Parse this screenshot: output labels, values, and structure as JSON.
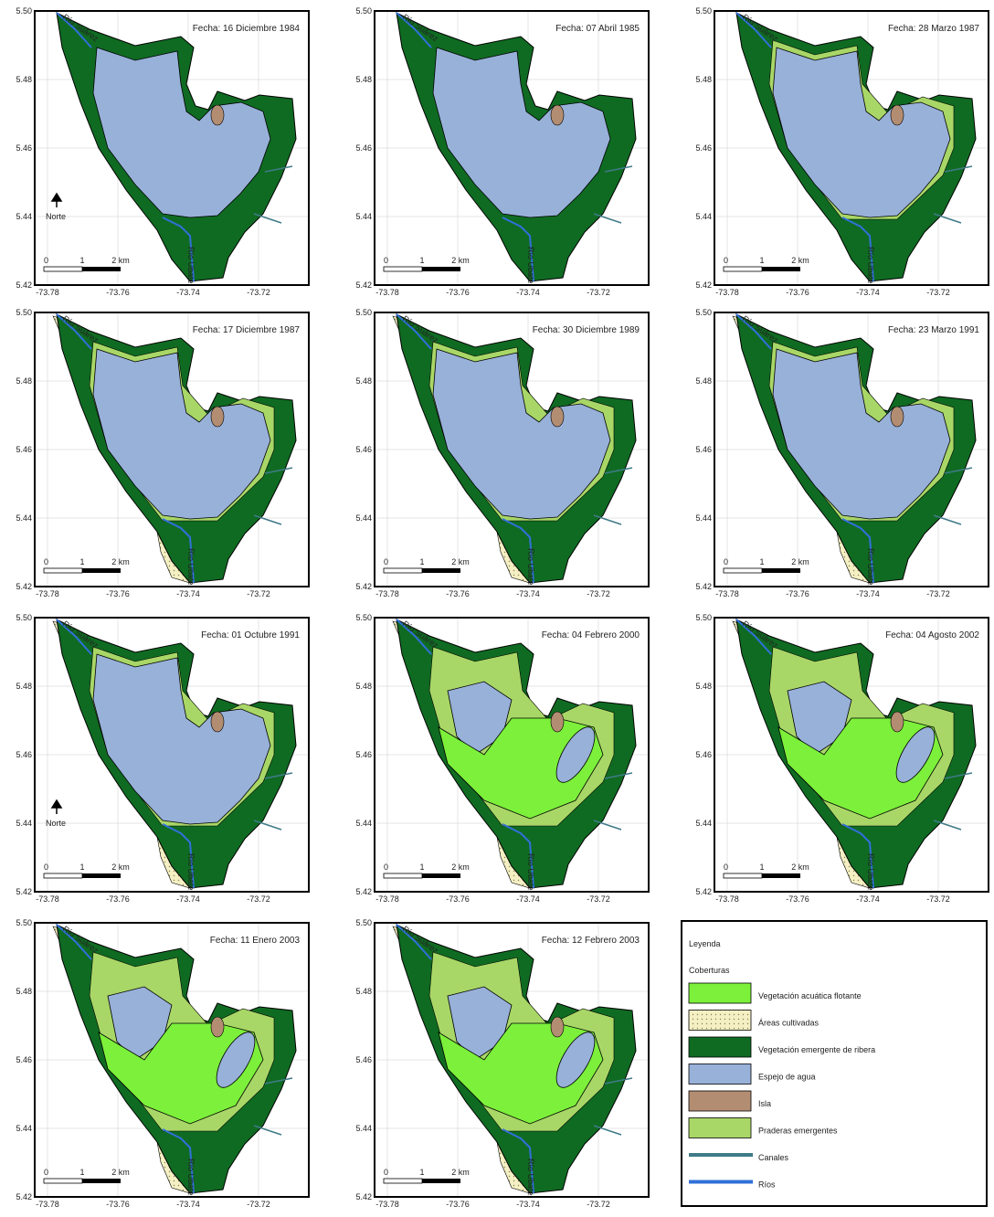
{
  "panels": [
    {
      "date": "Fecha: 16 Diciembre 1984",
      "north": "Norte"
    },
    {
      "date": "Fecha: 07 Abril 1985"
    },
    {
      "date": "Fecha: 28 Marzo 1987"
    },
    {
      "date": "Fecha: 17 Diciembre 1987"
    },
    {
      "date": "Fecha: 30 Diciembre 1989"
    },
    {
      "date": "Fecha: 23 Marzo 1991"
    },
    {
      "date": "Fecha: 01 Octubre 1991",
      "north": "Norte"
    },
    {
      "date": "Fecha: 04 Febrero 2000"
    },
    {
      "date": "Fecha: 04 Agosto 2002"
    },
    {
      "date": "Fecha: 11 Enero 2003"
    },
    {
      "date": "Fecha: 12 Febrero 2003"
    }
  ],
  "lat_ticks": [
    "5.50",
    "5.48",
    "5.46",
    "5.44",
    "5.42"
  ],
  "lon_ticks": [
    "-73.78",
    "-73.76",
    "-73.74",
    "-73.72"
  ],
  "scale_labels": [
    "0",
    "1",
    "2 km"
  ],
  "river_labels": [
    "Río Suárez",
    "Río Ubaté"
  ],
  "legend": {
    "title": "Leyenda",
    "subtitle": "Coberturas",
    "items": [
      {
        "label": "Vegetación acuática flotante",
        "color": "#7cf03a",
        "kind": "area"
      },
      {
        "label": "Áreas cultivadas",
        "color": "#f5f0c4",
        "kind": "area"
      },
      {
        "label": "Vegetación emergente de ribera",
        "color": "#0f6b22",
        "kind": "area"
      },
      {
        "label": "Espejo de agua",
        "color": "#98b1d9",
        "kind": "area"
      },
      {
        "label": "Isla",
        "color": "#b38d72",
        "kind": "area"
      },
      {
        "label": "Praderas emergentes",
        "color": "#a9d767",
        "kind": "area"
      },
      {
        "label": "Canales",
        "color": "#3f7b88",
        "kind": "line"
      },
      {
        "label": "Ríos",
        "color": "#2f70d9",
        "kind": "line"
      }
    ]
  }
}
